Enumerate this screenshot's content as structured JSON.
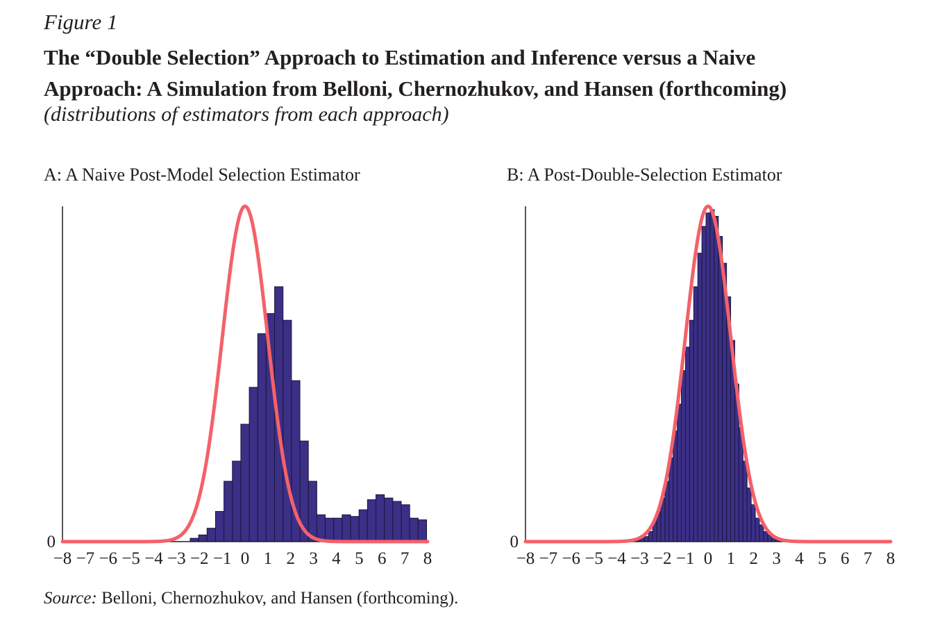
{
  "figure": {
    "label": "Figure 1",
    "title_line1": "The “Double Selection” Approach to Estimation and Inference versus a Naive",
    "title_line2": "Approach: A Simulation from Belloni, Chernozhukov, and Hansen (forthcoming)",
    "subtitle": "(distributions of estimators from each approach)"
  },
  "source": {
    "label": "Source:",
    "text": "Belloni, Chernozhukov, and Hansen (forthcoming)."
  },
  "colors": {
    "bars": "#3b2f86",
    "bar_edge": "#1a1640",
    "curve": "#f4616a",
    "axis": "#231f20"
  },
  "chart_data": [
    {
      "type": "bar",
      "panel_title": "A: A Naive Post-Model Selection Estimator",
      "xlim": [
        -8,
        8
      ],
      "ylim": [
        0,
        1
      ],
      "x_ticks": [
        "−8",
        "−7",
        "−6",
        "−5",
        "−4",
        "−3",
        "−2",
        "−1",
        "0",
        "1",
        "2",
        "3",
        "4",
        "5",
        "6",
        "7",
        "8"
      ],
      "y_ticks": [
        "0"
      ],
      "bin_width": 0.37,
      "histogram": {
        "bin_centers": [
          -2.22,
          -1.85,
          -1.48,
          -1.11,
          -0.74,
          -0.37,
          0.0,
          0.37,
          0.74,
          1.11,
          1.48,
          1.85,
          2.22,
          2.59,
          2.96,
          3.33,
          3.7,
          4.07,
          4.44,
          4.81,
          5.18,
          5.55,
          5.92,
          6.29,
          6.66,
          7.03,
          7.4,
          7.77
        ],
        "values": [
          0.01,
          0.02,
          0.04,
          0.09,
          0.18,
          0.24,
          0.35,
          0.46,
          0.62,
          0.68,
          0.76,
          0.66,
          0.48,
          0.3,
          0.18,
          0.08,
          0.07,
          0.07,
          0.08,
          0.075,
          0.095,
          0.125,
          0.14,
          0.13,
          0.12,
          0.11,
          0.07,
          0.065
        ]
      },
      "normal_curve": {
        "mean": 0,
        "sd": 1,
        "peak": 1.0
      }
    },
    {
      "type": "bar",
      "panel_title": "B: A Post-Double-Selection Estimator",
      "xlim": [
        -8,
        8
      ],
      "ylim": [
        0,
        1
      ],
      "x_ticks": [
        "−8",
        "−7",
        "−6",
        "−5",
        "−4",
        "−3",
        "−2",
        "−1",
        "0",
        "1",
        "2",
        "3",
        "4",
        "5",
        "6",
        "7",
        "8"
      ],
      "y_ticks": [
        "0"
      ],
      "bin_width": 0.18,
      "histogram": {
        "bin_centers": [
          -3.06,
          -2.88,
          -2.7,
          -2.52,
          -2.34,
          -2.16,
          -1.98,
          -1.8,
          -1.62,
          -1.44,
          -1.26,
          -1.08,
          -0.9,
          -0.72,
          -0.54,
          -0.36,
          -0.18,
          0.0,
          0.18,
          0.36,
          0.54,
          0.72,
          0.9,
          1.08,
          1.26,
          1.44,
          1.62,
          1.8,
          1.98,
          2.16,
          2.34,
          2.52,
          2.7,
          2.88,
          3.06
        ],
        "values": [
          0.005,
          0.01,
          0.015,
          0.03,
          0.06,
          0.09,
          0.13,
          0.18,
          0.25,
          0.33,
          0.41,
          0.51,
          0.58,
          0.66,
          0.76,
          0.86,
          0.94,
          0.98,
          0.99,
          0.97,
          0.91,
          0.83,
          0.73,
          0.6,
          0.47,
          0.34,
          0.24,
          0.16,
          0.11,
          0.07,
          0.05,
          0.03,
          0.02,
          0.01,
          0.005
        ]
      },
      "normal_curve": {
        "mean": 0,
        "sd": 1,
        "peak": 1.0
      }
    }
  ]
}
